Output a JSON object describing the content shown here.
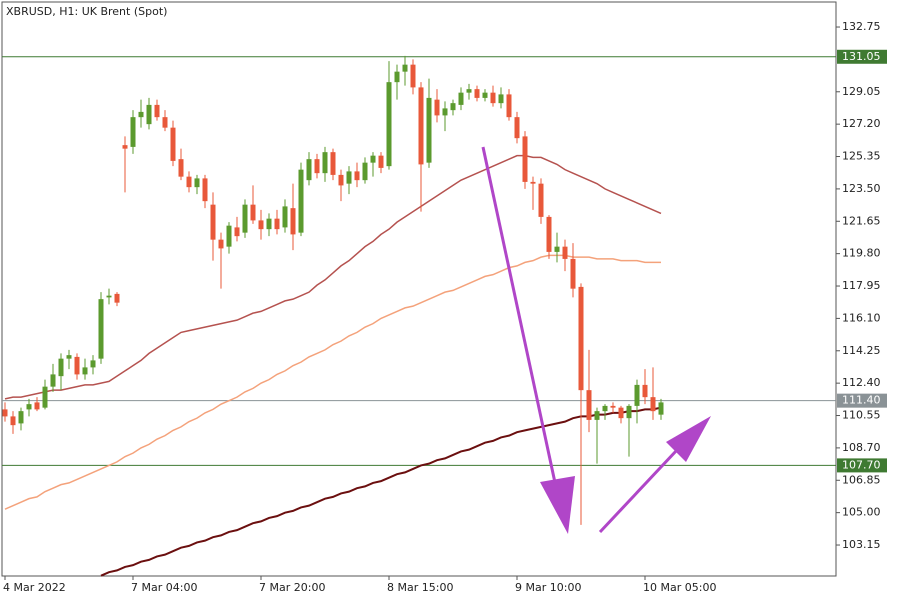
{
  "chart_data": {
    "type": "candlestick",
    "title": "XBRUSD, H1:  UK Brent (Spot)",
    "categories": [
      "4 Mar 2022",
      null,
      null,
      null,
      null,
      null,
      null,
      null,
      null,
      null,
      null,
      null,
      null,
      null,
      null,
      null,
      "7 Mar 04:00",
      null,
      null,
      null,
      null,
      null,
      null,
      null,
      null,
      null,
      null,
      null,
      null,
      null,
      null,
      null,
      "7 Mar 20:00",
      null,
      null,
      null,
      null,
      null,
      null,
      null,
      null,
      null,
      null,
      null,
      null,
      null,
      null,
      null,
      "8 Mar 15:00",
      null,
      null,
      null,
      null,
      null,
      null,
      null,
      null,
      null,
      null,
      null,
      null,
      null,
      null,
      null,
      "9 Mar 10:00",
      null,
      null,
      null,
      null,
      null,
      null,
      null,
      null,
      null,
      null,
      null,
      null,
      null,
      null,
      null,
      "10 Mar 05:00",
      null,
      null
    ],
    "open": [
      110.9,
      110.5,
      110.1,
      110.9,
      111.3,
      111.0,
      112.2,
      112.8,
      113.8,
      113.9,
      112.9,
      113.3,
      113.8,
      117.3,
      117.5,
      126.0,
      125.9,
      127.6,
      127.2,
      128.3,
      127.6,
      127.0,
      125.2,
      124.2,
      123.6,
      124.1,
      122.6,
      120.6,
      120.2,
      121.3,
      121.0,
      122.6,
      121.7,
      121.2,
      121.8,
      121.3,
      122.4,
      121.0,
      124.0,
      125.2,
      124.4,
      125.6,
      124.3,
      123.8,
      124.5,
      124.0,
      125.0,
      125.4,
      124.8,
      129.6,
      130.2,
      130.6,
      129.3,
      125.0,
      128.6,
      127.7,
      128.0,
      128.3,
      129.0,
      129.2,
      128.7,
      129.0,
      128.4,
      128.9,
      127.6,
      126.5,
      123.9,
      123.8,
      121.9,
      119.9,
      120.2,
      119.5,
      117.9,
      112.0,
      110.3,
      110.8,
      111.1,
      111.0,
      110.4,
      111.1,
      112.3,
      111.6,
      110.6
    ],
    "high": [
      111.3,
      110.8,
      111.0,
      111.5,
      111.6,
      112.6,
      113.5,
      114.1,
      114.3,
      114.1,
      113.8,
      114.0,
      117.6,
      117.8,
      117.6,
      126.5,
      128.0,
      128.6,
      128.7,
      128.6,
      128.0,
      127.4,
      125.8,
      124.5,
      124.3,
      124.3,
      123.3,
      121.0,
      121.6,
      121.9,
      122.9,
      123.7,
      122.3,
      122.1,
      122.3,
      122.9,
      123.8,
      125.0,
      125.6,
      125.5,
      125.9,
      125.8,
      124.6,
      124.8,
      125.0,
      125.3,
      125.6,
      125.6,
      130.8,
      130.6,
      131.1,
      130.9,
      129.6,
      129.8,
      129.2,
      128.5,
      128.6,
      129.3,
      129.5,
      129.4,
      129.2,
      129.4,
      129.3,
      129.2,
      127.9,
      126.8,
      124.2,
      124.1,
      122.0,
      121.0,
      120.6,
      120.4,
      118.1,
      114.3,
      111.0,
      111.2,
      111.3,
      111.1,
      111.2,
      112.6,
      113.2,
      113.3,
      111.5
    ],
    "low": [
      110.2,
      109.5,
      109.7,
      110.5,
      110.8,
      110.9,
      111.9,
      112.0,
      113.2,
      112.6,
      112.6,
      112.9,
      113.5,
      116.9,
      116.8,
      123.3,
      125.5,
      127.0,
      126.9,
      127.4,
      126.8,
      124.8,
      124.0,
      123.3,
      123.2,
      122.4,
      119.4,
      117.8,
      119.8,
      120.5,
      120.7,
      121.5,
      120.6,
      120.8,
      120.9,
      121.0,
      120.0,
      120.8,
      123.7,
      124.1,
      123.9,
      124.0,
      122.8,
      123.2,
      123.6,
      123.8,
      124.2,
      124.4,
      124.6,
      128.6,
      129.4,
      128.9,
      122.2,
      124.7,
      127.3,
      126.8,
      127.7,
      128.0,
      128.6,
      128.5,
      128.5,
      128.2,
      128.1,
      127.4,
      126.1,
      123.5,
      122.3,
      121.5,
      119.5,
      119.3,
      118.8,
      117.3,
      104.3,
      109.6,
      107.8,
      110.3,
      110.7,
      110.1,
      108.2,
      110.1,
      111.2,
      110.3,
      110.3
    ],
    "close": [
      110.5,
      110.0,
      110.8,
      111.2,
      110.9,
      112.2,
      112.9,
      113.8,
      114.0,
      112.9,
      113.3,
      113.7,
      117.2,
      117.4,
      117.0,
      125.8,
      127.6,
      127.9,
      128.3,
      127.6,
      127.0,
      125.1,
      124.2,
      123.6,
      124.1,
      122.8,
      120.6,
      120.1,
      121.4,
      120.8,
      122.6,
      121.7,
      121.2,
      121.8,
      121.2,
      122.5,
      120.9,
      124.6,
      125.2,
      124.4,
      125.6,
      124.3,
      123.7,
      124.5,
      124.0,
      125.0,
      125.4,
      124.7,
      129.6,
      130.2,
      130.6,
      129.3,
      124.9,
      128.7,
      127.7,
      128.1,
      128.4,
      129.0,
      129.2,
      128.7,
      129.0,
      128.4,
      128.9,
      127.6,
      126.4,
      123.9,
      123.8,
      121.9,
      119.9,
      120.2,
      119.5,
      117.8,
      112.0,
      110.3,
      110.8,
      111.1,
      111.0,
      110.4,
      111.1,
      112.3,
      111.6,
      110.8,
      111.3
    ],
    "up_color": "#5b9a2e",
    "down_color": "#e8583a",
    "series": [
      {
        "color": "#b5524f",
        "values": [
          111.5,
          111.6,
          111.6,
          111.7,
          111.8,
          111.9,
          112.0,
          112.0,
          112.1,
          112.2,
          112.3,
          112.3,
          112.4,
          112.5,
          112.8,
          113.1,
          113.4,
          113.7,
          114.1,
          114.4,
          114.7,
          115.0,
          115.3,
          115.4,
          115.5,
          115.6,
          115.7,
          115.8,
          115.9,
          116.0,
          116.2,
          116.4,
          116.5,
          116.7,
          116.9,
          117.1,
          117.2,
          117.4,
          117.6,
          118.0,
          118.3,
          118.7,
          119.1,
          119.4,
          119.8,
          120.2,
          120.5,
          120.9,
          121.2,
          121.6,
          121.9,
          122.2,
          122.5,
          122.8,
          123.1,
          123.4,
          123.7,
          124.0,
          124.2,
          124.4,
          124.6,
          124.8,
          125.0,
          125.2,
          125.4,
          125.4,
          125.3,
          125.3,
          125.1,
          124.9,
          124.6,
          124.4,
          124.2,
          124.0,
          123.8,
          123.5,
          123.3,
          123.1,
          122.9,
          122.7,
          122.5,
          122.3,
          122.1
        ]
      },
      {
        "color": "#f4a27b",
        "values": [
          105.2,
          105.4,
          105.6,
          105.8,
          105.9,
          106.2,
          106.4,
          106.6,
          106.7,
          106.9,
          107.1,
          107.3,
          107.5,
          107.7,
          107.9,
          108.2,
          108.4,
          108.7,
          108.9,
          109.2,
          109.4,
          109.7,
          109.9,
          110.2,
          110.4,
          110.7,
          110.9,
          111.2,
          111.4,
          111.6,
          111.9,
          112.1,
          112.4,
          112.6,
          112.9,
          113.1,
          113.4,
          113.6,
          113.9,
          114.1,
          114.3,
          114.6,
          114.8,
          115.1,
          115.3,
          115.6,
          115.8,
          116.1,
          116.3,
          116.5,
          116.7,
          116.8,
          117.0,
          117.2,
          117.4,
          117.6,
          117.7,
          117.9,
          118.1,
          118.3,
          118.5,
          118.6,
          118.8,
          119.0,
          119.1,
          119.3,
          119.4,
          119.6,
          119.7,
          119.7,
          119.7,
          119.6,
          119.6,
          119.6,
          119.5,
          119.5,
          119.5,
          119.4,
          119.4,
          119.4,
          119.3,
          119.3,
          119.3
        ]
      },
      {
        "color": "#6b0f0f",
        "values": [
          null,
          null,
          null,
          null,
          null,
          null,
          null,
          null,
          null,
          null,
          null,
          null,
          101.4,
          101.6,
          101.7,
          101.9,
          102.0,
          102.2,
          102.3,
          102.5,
          102.6,
          102.8,
          103.0,
          103.1,
          103.3,
          103.4,
          103.6,
          103.7,
          103.9,
          104.0,
          104.2,
          104.4,
          104.5,
          104.7,
          104.8,
          105.0,
          105.1,
          105.3,
          105.4,
          105.6,
          105.8,
          105.9,
          106.1,
          106.2,
          106.4,
          106.5,
          106.7,
          106.8,
          107.0,
          107.2,
          107.3,
          107.5,
          107.7,
          107.8,
          108.0,
          108.1,
          108.3,
          108.5,
          108.6,
          108.8,
          109.0,
          109.1,
          109.3,
          109.4,
          109.6,
          109.7,
          109.8,
          109.9,
          110.0,
          110.1,
          110.2,
          110.4,
          110.5,
          110.5,
          110.6,
          110.6,
          110.7,
          110.7,
          110.8,
          110.8,
          110.9,
          110.9,
          111.0
        ]
      }
    ],
    "ylim": [
      101.38,
      134.18
    ],
    "yticks": [
      103.15,
      {
        "value": 105,
        "label": "105.00"
      },
      106.85,
      {
        "value": 108.7,
        "label": "108.70"
      },
      110.55,
      {
        "value": 112.4,
        "label": "112.40"
      },
      114.25,
      {
        "value": 116.1,
        "label": "116.10"
      },
      117.95,
      {
        "value": 119.8,
        "label": "119.80"
      },
      121.65,
      {
        "value": 123.5,
        "label": "123.50"
      },
      125.35,
      {
        "value": 127.2,
        "label": "127.20"
      },
      129.05,
      132.75
    ],
    "levels": [
      {
        "value": 131.05,
        "label": "131.05",
        "color": "#3f7a32"
      },
      {
        "value": 111.4,
        "label": "111.40",
        "color": "#8a9296"
      },
      {
        "value": 107.7,
        "label": "107.70",
        "color": "#3f7a32"
      }
    ],
    "grid": false
  }
}
